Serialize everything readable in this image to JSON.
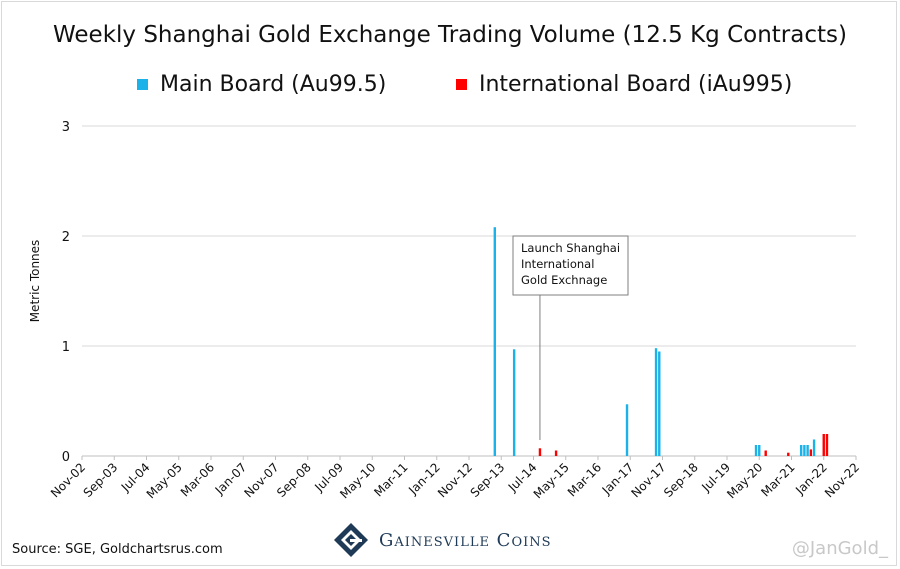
{
  "chart_data": {
    "type": "bar",
    "title": "Weekly Shanghai Gold Exchange Trading Volume (12.5 Kg Contracts)",
    "ylabel": "Metric Tonnes",
    "xlabel": "",
    "ylim": [
      0,
      3
    ],
    "yticks": [
      "0",
      "1",
      "2",
      "3"
    ],
    "x_tick_labels": [
      "Nov-02",
      "Sep-03",
      "Jul-04",
      "May-05",
      "Mar-06",
      "Jan-07",
      "Nov-07",
      "Sep-08",
      "Jul-09",
      "May-10",
      "Mar-11",
      "Jan-12",
      "Nov-12",
      "Sep-13",
      "Jul-14",
      "May-15",
      "Mar-16",
      "Jan-17",
      "Nov-17",
      "Sep-18",
      "Jul-19",
      "May-20",
      "Mar-21",
      "Jan-22",
      "Nov-22"
    ],
    "grid": true,
    "legend_position": "top",
    "series": [
      {
        "name": "Main Board (Au99.5)",
        "color": "#1ab2e8",
        "x": [
          "2013-07",
          "2014-01",
          "2016-12",
          "2017-09",
          "2017-10",
          "2020-04",
          "2020-05",
          "2021-06",
          "2021-07",
          "2021-08",
          "2021-10"
        ],
        "values": [
          2.08,
          0.97,
          0.47,
          0.98,
          0.95,
          0.1,
          0.1,
          0.1,
          0.1,
          0.1,
          0.15
        ]
      },
      {
        "name": "International Board (iAu995)",
        "color": "#ff0000",
        "x": [
          "2014-09",
          "2015-02",
          "2020-07",
          "2021-02",
          "2021-09",
          "2022-01",
          "2022-02"
        ],
        "values": [
          0.07,
          0.05,
          0.05,
          0.03,
          0.06,
          0.2,
          0.2
        ]
      }
    ],
    "annotation": {
      "text_lines": [
        "Launch Shanghai",
        "International",
        "Gold Exchnage"
      ],
      "x": "2014-09"
    }
  },
  "footer": {
    "source": "Source: SGE, Goldchartsrus.com",
    "brand": "Gainesville Coins",
    "handle": "@JanGold_"
  }
}
